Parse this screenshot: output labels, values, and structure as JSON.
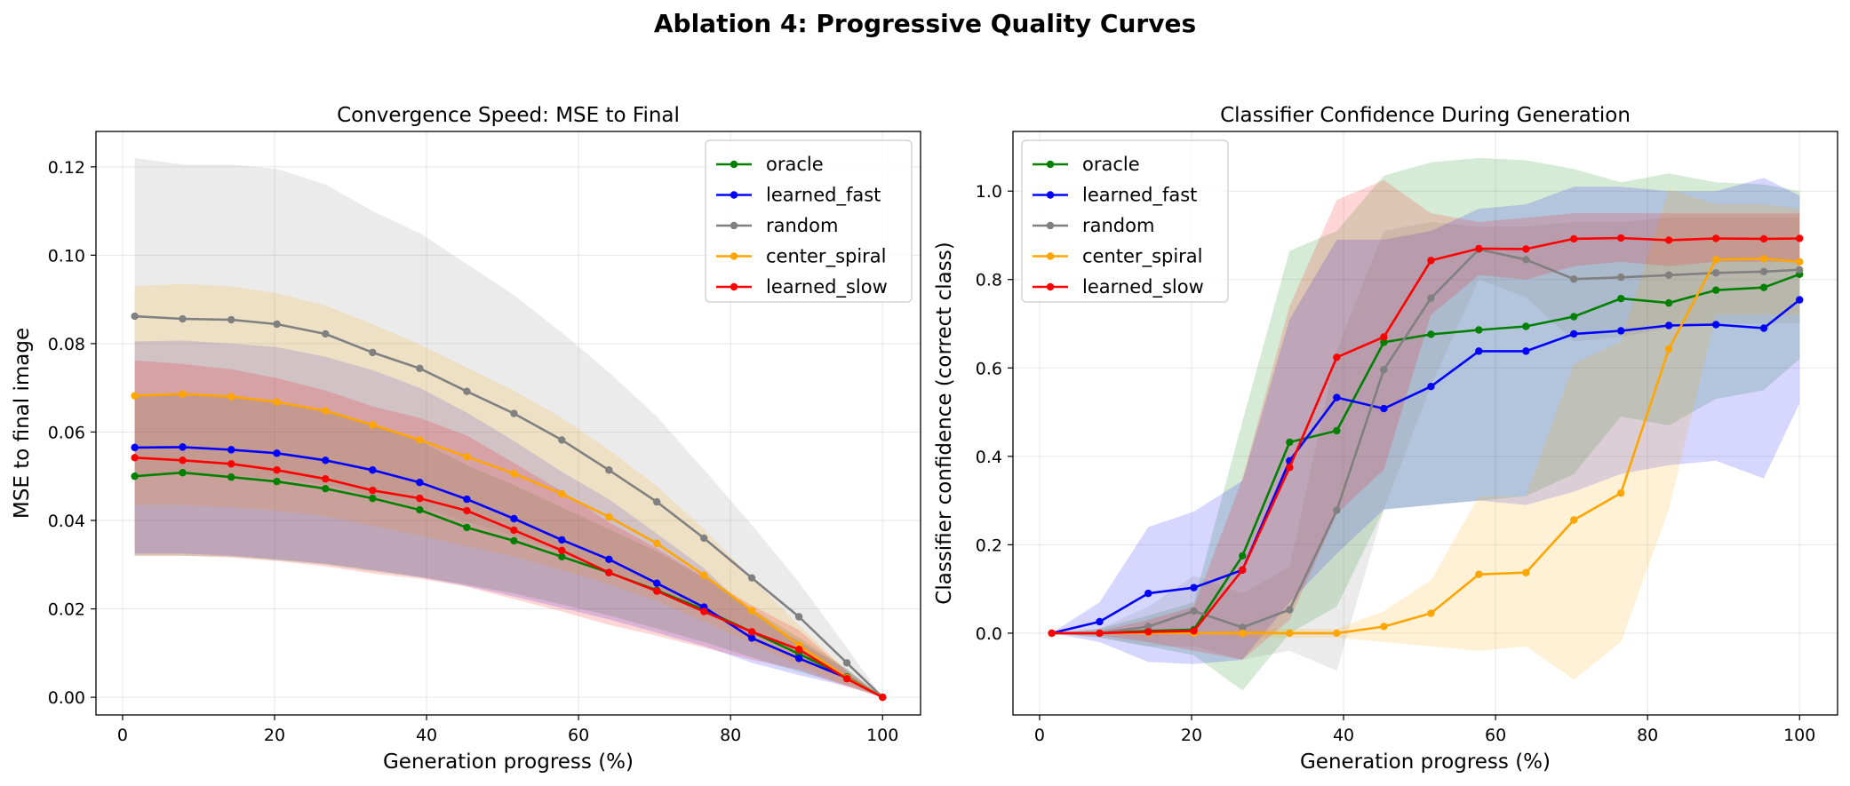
{
  "figure": {
    "title": "Ablation 4: Progressive Quality Curves"
  },
  "chart_data": [
    {
      "type": "line",
      "title": "Convergence Speed: MSE to Final",
      "xlabel": "Generation progress (%)",
      "ylabel": "MSE to final image",
      "xlim": [
        -3.5,
        105
      ],
      "ylim": [
        -0.004,
        0.128
      ],
      "xticks": [
        0,
        20,
        40,
        60,
        80,
        100
      ],
      "yticks": [
        0.0,
        0.02,
        0.04,
        0.06,
        0.08,
        0.1,
        0.12
      ],
      "ytick_labels": [
        "0.00",
        "0.02",
        "0.04",
        "0.06",
        "0.08",
        "0.10",
        "0.12"
      ],
      "grid": true,
      "legend": "upper right",
      "bands": "shaded ± spread",
      "x": [
        1.6,
        7.9,
        14.3,
        20.3,
        26.7,
        32.9,
        39.1,
        45.3,
        51.5,
        57.8,
        64.0,
        70.3,
        76.5,
        82.8,
        89.0,
        95.3,
        100
      ],
      "series": [
        {
          "name": "oracle",
          "color": "#008000",
          "values": [
            0.05,
            0.0508,
            0.0498,
            0.0488,
            0.0472,
            0.045,
            0.0424,
            0.0384,
            0.0354,
            0.0318,
            0.0282,
            0.0242,
            0.0198,
            0.0148,
            0.0098,
            0.0046,
            0.0
          ],
          "lower": [
            0.032,
            0.032,
            0.0318,
            0.031,
            0.03,
            0.0285,
            0.0272,
            0.0255,
            0.0235,
            0.021,
            0.0185,
            0.0155,
            0.0125,
            0.009,
            0.0058,
            0.0028,
            0.0
          ],
          "upper": [
            0.068,
            0.069,
            0.068,
            0.0665,
            0.0645,
            0.0615,
            0.058,
            0.0525,
            0.048,
            0.043,
            0.038,
            0.033,
            0.027,
            0.02,
            0.0135,
            0.0065,
            0.0
          ]
        },
        {
          "name": "learned_fast",
          "color": "#0000ff",
          "values": [
            0.0565,
            0.0566,
            0.056,
            0.0552,
            0.0536,
            0.0514,
            0.0486,
            0.0448,
            0.0404,
            0.0356,
            0.0312,
            0.0258,
            0.0204,
            0.0134,
            0.0088,
            0.0044,
            0.0
          ],
          "lower": [
            0.0325,
            0.0325,
            0.032,
            0.0312,
            0.0302,
            0.0288,
            0.0272,
            0.0252,
            0.0228,
            0.0202,
            0.0176,
            0.0146,
            0.0116,
            0.0078,
            0.005,
            0.0025,
            0.0
          ],
          "upper": [
            0.0805,
            0.0807,
            0.08,
            0.0792,
            0.077,
            0.074,
            0.07,
            0.0644,
            0.058,
            0.051,
            0.0448,
            0.037,
            0.0292,
            0.019,
            0.0126,
            0.0063,
            0.0
          ]
        },
        {
          "name": "random",
          "color": "#808080",
          "values": [
            0.0862,
            0.0856,
            0.0854,
            0.0844,
            0.0822,
            0.078,
            0.0744,
            0.0692,
            0.0642,
            0.0582,
            0.0514,
            0.0442,
            0.036,
            0.027,
            0.0182,
            0.0078,
            0.0
          ],
          "lower": [
            0.0505,
            0.0505,
            0.0502,
            0.0495,
            0.0482,
            0.0455,
            0.043,
            0.0398,
            0.0365,
            0.0328,
            0.0288,
            0.0246,
            0.02,
            0.015,
            0.0102,
            0.0044,
            0.0
          ],
          "upper": [
            0.122,
            0.1205,
            0.1205,
            0.1195,
            0.116,
            0.11,
            0.105,
            0.098,
            0.091,
            0.0825,
            0.0735,
            0.0635,
            0.0515,
            0.039,
            0.026,
            0.0112,
            0.0
          ]
        },
        {
          "name": "center_spiral",
          "color": "#ffa500",
          "values": [
            0.0682,
            0.0686,
            0.068,
            0.0668,
            0.0648,
            0.0616,
            0.0582,
            0.0544,
            0.0506,
            0.046,
            0.0408,
            0.0348,
            0.0276,
            0.0196,
            0.0118,
            0.0044,
            0.0
          ],
          "lower": [
            0.0435,
            0.0435,
            0.043,
            0.0422,
            0.041,
            0.0388,
            0.0366,
            0.0342,
            0.0318,
            0.0288,
            0.0256,
            0.0218,
            0.0172,
            0.0122,
            0.0073,
            0.0027,
            0.0
          ],
          "upper": [
            0.093,
            0.0935,
            0.093,
            0.0914,
            0.0886,
            0.0844,
            0.0798,
            0.0746,
            0.0694,
            0.0632,
            0.056,
            0.0478,
            0.038,
            0.027,
            0.0163,
            0.0061,
            0.0
          ]
        },
        {
          "name": "learned_slow",
          "color": "#ff0000",
          "values": [
            0.0542,
            0.0536,
            0.0528,
            0.0514,
            0.0494,
            0.0468,
            0.045,
            0.0422,
            0.0378,
            0.0332,
            0.0282,
            0.024,
            0.0194,
            0.0148,
            0.0108,
            0.0042,
            0.0
          ],
          "lower": [
            0.032,
            0.032,
            0.0316,
            0.0308,
            0.0296,
            0.028,
            0.0268,
            0.025,
            0.0222,
            0.0194,
            0.0164,
            0.0139,
            0.0112,
            0.0085,
            0.0062,
            0.0024,
            0.0
          ],
          "upper": [
            0.0762,
            0.0754,
            0.0742,
            0.0722,
            0.0694,
            0.0658,
            0.0632,
            0.0592,
            0.053,
            0.0466,
            0.0396,
            0.0337,
            0.0272,
            0.0208,
            0.0152,
            0.0059,
            0.0
          ]
        }
      ]
    },
    {
      "type": "line",
      "title": "Classifier Confidence During Generation",
      "xlabel": "Generation progress (%)",
      "ylabel": "Classifier confidence (correct class)",
      "xlim": [
        -3.5,
        105
      ],
      "ylim": [
        -0.185,
        1.135
      ],
      "xticks": [
        0,
        20,
        40,
        60,
        80,
        100
      ],
      "yticks": [
        0.0,
        0.2,
        0.4,
        0.6,
        0.8,
        1.0
      ],
      "ytick_labels": [
        "0.0",
        "0.2",
        "0.4",
        "0.6",
        "0.8",
        "1.0"
      ],
      "grid": true,
      "legend": "upper left",
      "bands": "shaded ± spread",
      "x": [
        1.6,
        7.9,
        14.3,
        20.3,
        26.7,
        32.9,
        39.1,
        45.3,
        51.5,
        57.8,
        64.0,
        70.3,
        76.5,
        82.8,
        89.0,
        95.3,
        100
      ],
      "series": [
        {
          "name": "oracle",
          "color": "#008000",
          "values": [
            0.0,
            0.0,
            0.005,
            0.008,
            0.175,
            0.432,
            0.458,
            0.658,
            0.676,
            0.686,
            0.694,
            0.716,
            0.757,
            0.747,
            0.776,
            0.782,
            0.812
          ],
          "lower": [
            0.0,
            -0.01,
            -0.03,
            -0.05,
            -0.13,
            0.0,
            0.06,
            0.28,
            0.29,
            0.3,
            0.31,
            0.36,
            0.49,
            0.47,
            0.53,
            0.55,
            0.62
          ],
          "upper": [
            0.0,
            0.01,
            0.04,
            0.07,
            0.48,
            0.865,
            0.91,
            1.035,
            1.065,
            1.075,
            1.07,
            1.05,
            1.02,
            1.04,
            1.02,
            1.015,
            1.0
          ]
        },
        {
          "name": "learned_fast",
          "color": "#0000ff",
          "values": [
            0.0,
            0.026,
            0.09,
            0.103,
            0.143,
            0.39,
            0.533,
            0.508,
            0.558,
            0.638,
            0.638,
            0.677,
            0.684,
            0.696,
            0.698,
            0.69,
            0.754
          ],
          "lower": [
            0.0,
            -0.02,
            -0.065,
            -0.07,
            -0.06,
            0.07,
            0.18,
            0.28,
            0.29,
            0.3,
            0.29,
            0.32,
            0.36,
            0.38,
            0.39,
            0.35,
            0.52
          ],
          "upper": [
            0.0,
            0.07,
            0.24,
            0.275,
            0.345,
            0.71,
            0.89,
            0.89,
            0.91,
            0.96,
            0.97,
            1.01,
            1.01,
            1.0,
            1.0,
            1.03,
            0.99
          ]
        },
        {
          "name": "random",
          "color": "#808080",
          "values": [
            0.0,
            0.0,
            0.015,
            0.05,
            0.013,
            0.053,
            0.278,
            0.596,
            0.758,
            0.868,
            0.845,
            0.801,
            0.805,
            0.81,
            0.815,
            0.818,
            0.822
          ],
          "lower": [
            0.0,
            -0.01,
            -0.03,
            -0.03,
            -0.06,
            -0.04,
            -0.085,
            0.28,
            0.56,
            0.8,
            0.76,
            0.66,
            0.67,
            0.69,
            0.7,
            0.7,
            0.7
          ],
          "upper": [
            0.0,
            0.01,
            0.06,
            0.13,
            0.09,
            0.15,
            0.64,
            0.91,
            0.93,
            0.92,
            0.92,
            0.93,
            0.93,
            0.94,
            0.94,
            0.94,
            0.94
          ]
        },
        {
          "name": "center_spiral",
          "color": "#ffa500",
          "values": [
            0.0,
            0.0,
            0.0,
            0.0,
            0.0,
            0.0,
            0.0,
            0.015,
            0.045,
            0.133,
            0.137,
            0.256,
            0.317,
            0.643,
            0.845,
            0.847,
            0.84
          ],
          "lower": [
            0.0,
            0.0,
            0.0,
            0.0,
            -0.01,
            -0.01,
            -0.01,
            -0.02,
            -0.03,
            -0.04,
            -0.03,
            -0.105,
            -0.02,
            0.28,
            0.72,
            0.72,
            0.72
          ],
          "upper": [
            0.0,
            0.0,
            0.0,
            0.0,
            0.01,
            0.01,
            0.01,
            0.05,
            0.12,
            0.31,
            0.31,
            0.61,
            0.66,
            1.005,
            0.97,
            0.97,
            0.96
          ]
        },
        {
          "name": "learned_slow",
          "color": "#ff0000",
          "values": [
            0.0,
            0.0,
            0.003,
            0.005,
            0.143,
            0.375,
            0.624,
            0.67,
            0.843,
            0.87,
            0.869,
            0.892,
            0.894,
            0.889,
            0.893,
            0.892,
            0.893
          ],
          "lower": [
            0.0,
            -0.005,
            -0.02,
            -0.04,
            -0.06,
            0.03,
            0.27,
            0.37,
            0.72,
            0.81,
            0.8,
            0.83,
            0.84,
            0.83,
            0.84,
            0.84,
            0.84
          ],
          "upper": [
            0.0,
            0.005,
            0.03,
            0.06,
            0.35,
            0.74,
            0.98,
            1.025,
            0.95,
            0.93,
            0.94,
            0.95,
            0.95,
            0.95,
            0.95,
            0.95,
            0.95
          ]
        }
      ]
    }
  ]
}
